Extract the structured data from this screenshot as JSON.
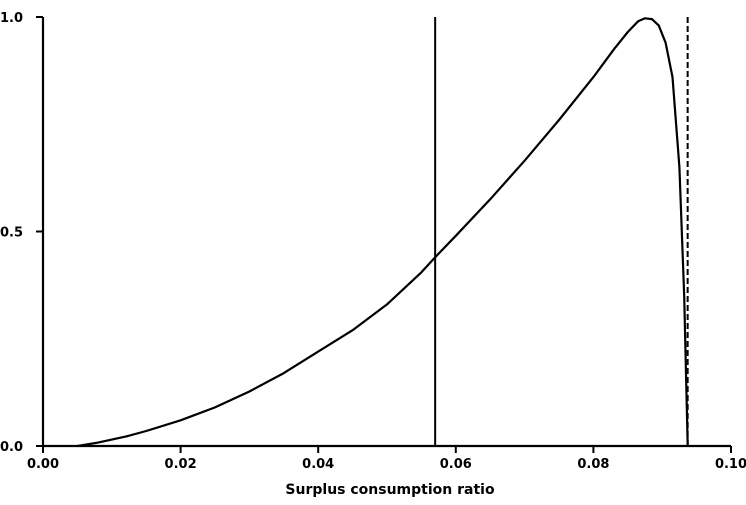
{
  "chart_data": {
    "type": "line",
    "title": "",
    "xlabel": "Surplus consumption ratio",
    "ylabel": "",
    "xlim": [
      0.0,
      0.1
    ],
    "ylim": [
      0.0,
      1.0
    ],
    "grid": false,
    "legend": "none",
    "x_ticks": [
      "0.00",
      "0.02",
      "0.04",
      "0.06",
      "0.08",
      "0.10"
    ],
    "x_tick_values": [
      0.0,
      0.02,
      0.04,
      0.06,
      0.08,
      0.1
    ],
    "y_ticks": [
      "0.0",
      "0.5",
      "1.0"
    ],
    "y_tick_values": [
      0.0,
      0.5,
      1.0
    ],
    "series": [
      {
        "x": [
          0.005,
          0.008,
          0.01,
          0.012,
          0.015,
          0.02,
          0.025,
          0.03,
          0.035,
          0.04,
          0.045,
          0.05,
          0.055,
          0.057,
          0.06,
          0.065,
          0.07,
          0.075,
          0.08,
          0.083,
          0.085,
          0.0865,
          0.0875,
          0.0885,
          0.0895,
          0.0905,
          0.0915,
          0.0925,
          0.0932,
          0.0937
        ],
        "y": [
          0.0,
          0.008,
          0.015,
          0.022,
          0.035,
          0.06,
          0.09,
          0.127,
          0.17,
          0.22,
          0.27,
          0.33,
          0.405,
          0.44,
          0.49,
          0.575,
          0.665,
          0.76,
          0.86,
          0.925,
          0.965,
          0.99,
          0.997,
          0.995,
          0.98,
          0.94,
          0.86,
          0.65,
          0.35,
          0.0
        ]
      }
    ],
    "vertical_lines": [
      {
        "x": 0.057,
        "style": "solid"
      },
      {
        "x": 0.0937,
        "style": "dashed"
      }
    ],
    "colors": {
      "line": "#000000",
      "background": "#ffffff"
    }
  }
}
